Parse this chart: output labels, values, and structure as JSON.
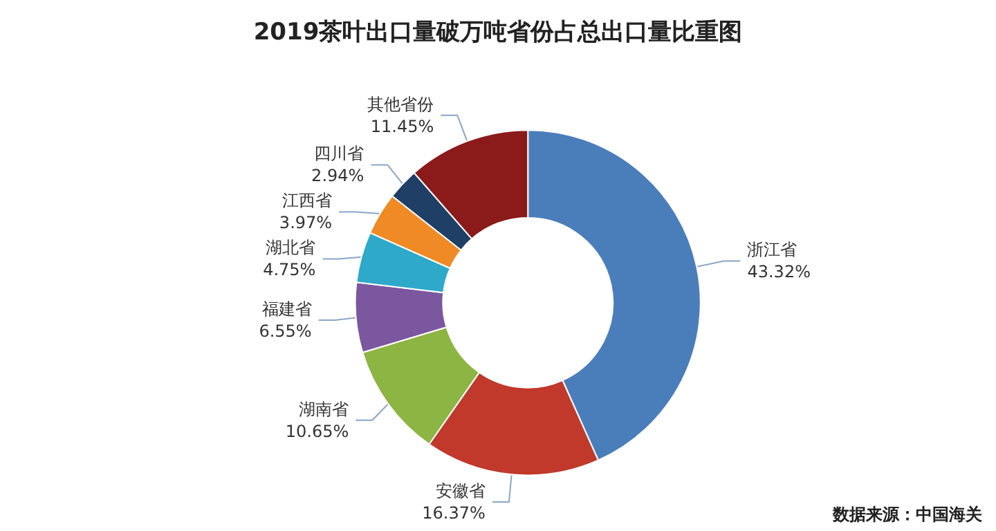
{
  "chart_data": {
    "type": "donut",
    "title": "2019茶叶出口量破万吨省份占总出口量比重图",
    "categories": [
      "浙江省",
      "安徽省",
      "湖南省",
      "福建省",
      "湖北省",
      "江西省",
      "四川省",
      "其他省份"
    ],
    "values": [
      43.32,
      16.37,
      10.65,
      6.55,
      4.75,
      3.97,
      2.94,
      11.45
    ],
    "value_labels": [
      "43.32%",
      "16.37%",
      "10.65%",
      "6.55%",
      "4.75%",
      "3.97%",
      "2.94%",
      "11.45%"
    ],
    "colors": [
      "#4a7ebb",
      "#c0392b",
      "#8db543",
      "#7b57a0",
      "#2ea9c9",
      "#f08a24",
      "#1f3f66",
      "#8b1a1a"
    ],
    "annotations": [
      "数据来源：中国海关"
    ],
    "legend": false
  }
}
